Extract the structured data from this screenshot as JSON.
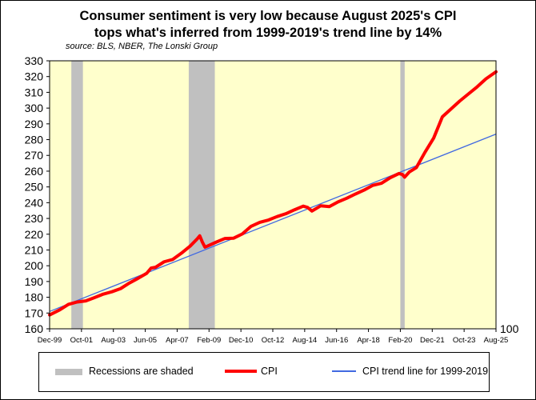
{
  "title": {
    "line1": "Consumer sentiment is very low because August 2025's CPI",
    "line2": "tops what's inferred from 1999-2019's trend line by 14%"
  },
  "source": "source: BLS, NBER, The Lonski Group",
  "legend": {
    "recessions": "Recessions are shaded",
    "cpi": "CPI",
    "trend": "CPI trend line for 1999-2019"
  },
  "colors": {
    "plot_background": "#ffffcc",
    "recession": "#c0c0c0",
    "cpi": "#ff0000",
    "trend": "#4169e1"
  },
  "chart_data": {
    "type": "line",
    "title": "Consumer sentiment is very low because August 2025's CPI tops what's inferred from 1999-2019's trend line by 14%",
    "xlabel": "",
    "ylabel": "",
    "x_range": [
      1999.917,
      2025.583
    ],
    "ylim": [
      160,
      330
    ],
    "y_ticks": [
      160,
      170,
      180,
      190,
      200,
      210,
      220,
      230,
      240,
      250,
      260,
      270,
      280,
      290,
      300,
      310,
      320,
      330
    ],
    "x_ticks": [
      {
        "label": "Dec-99",
        "x": 1999.917
      },
      {
        "label": "Oct-01",
        "x": 2001.75
      },
      {
        "label": "Aug-03",
        "x": 2003.583
      },
      {
        "label": "Jun-05",
        "x": 2005.417
      },
      {
        "label": "Apr-07",
        "x": 2007.25
      },
      {
        "label": "Feb-09",
        "x": 2009.083
      },
      {
        "label": "Dec-10",
        "x": 2010.917
      },
      {
        "label": "Oct-12",
        "x": 2012.75
      },
      {
        "label": "Aug-14",
        "x": 2014.583
      },
      {
        "label": "Jun-16",
        "x": 2016.417
      },
      {
        "label": "Apr-18",
        "x": 2018.25
      },
      {
        "label": "Feb-20",
        "x": 2020.083
      },
      {
        "label": "Dec-21",
        "x": 2021.917
      },
      {
        "label": "Oct-23",
        "x": 2023.75
      },
      {
        "label": "Aug-25",
        "x": 2025.583
      }
    ],
    "extra_label": "100",
    "recessions": [
      {
        "start": 2001.167,
        "end": 2001.833
      },
      {
        "start": 2007.917,
        "end": 2009.417
      },
      {
        "start": 2020.083,
        "end": 2020.333
      }
    ],
    "series": [
      {
        "name": "CPI",
        "x": [
          1999.917,
          2000.5,
          2001.0,
          2001.5,
          2002.0,
          2002.5,
          2003.0,
          2003.5,
          2004.0,
          2004.5,
          2005.0,
          2005.5,
          2005.75,
          2006.0,
          2006.5,
          2007.0,
          2007.5,
          2008.0,
          2008.4,
          2008.55,
          2008.7,
          2008.85,
          2009.0,
          2009.5,
          2010.0,
          2010.5,
          2011.0,
          2011.5,
          2012.0,
          2012.5,
          2013.0,
          2013.5,
          2014.0,
          2014.5,
          2014.75,
          2015.0,
          2015.5,
          2016.0,
          2016.5,
          2017.0,
          2017.5,
          2018.0,
          2018.5,
          2019.0,
          2019.5,
          2020.0,
          2020.2,
          2020.33,
          2020.6,
          2021.0,
          2021.5,
          2022.0,
          2022.5,
          2023.0,
          2023.5,
          2024.0,
          2024.5,
          2025.0,
          2025.583
        ],
        "values": [
          168.8,
          172.0,
          175.5,
          177.0,
          177.7,
          179.8,
          182.0,
          183.5,
          185.5,
          189.0,
          192.0,
          195.2,
          198.5,
          199.0,
          202.5,
          204.0,
          208.0,
          212.5,
          217.0,
          219.0,
          215.0,
          211.8,
          212.5,
          215.0,
          217.3,
          217.5,
          220.2,
          225.0,
          227.5,
          229.0,
          231.2,
          233.0,
          235.5,
          237.8,
          237.0,
          234.7,
          238.0,
          237.5,
          240.5,
          242.8,
          245.5,
          248.0,
          251.0,
          252.3,
          255.8,
          258.5,
          257.9,
          256.2,
          259.5,
          262.2,
          272.0,
          281.0,
          294.5,
          299.5,
          304.5,
          309.0,
          313.5,
          318.5,
          323.0
        ]
      },
      {
        "name": "CPI trend line for 1999-2019",
        "x": [
          1999.917,
          2025.583
        ],
        "values": [
          171.0,
          283.5
        ]
      }
    ]
  }
}
